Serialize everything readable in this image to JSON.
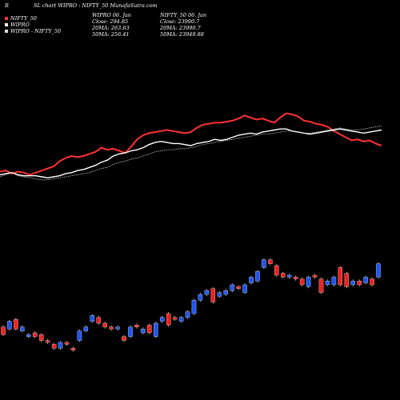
{
  "header": {
    "left_mark": "R",
    "title": "SL chart WIPRO : NIFTY_50 MunafaSutra.com"
  },
  "legend": [
    {
      "label": "NIFTY_50",
      "color": "#ff3333"
    },
    {
      "label": "WIPRO",
      "color": "#ffffff"
    },
    {
      "label": "WIPRO - NIFTY_50",
      "color": "#dddddd"
    }
  ],
  "info_wipro": {
    "line1": "WIPRO 06. Jan",
    "line2": "Close: 294.85",
    "line3": "20MA: 263.63",
    "line4": "50MA: 256.41"
  },
  "info_nifty": {
    "line1": "NIFTY_50 06. Jan",
    "line2": "Close: 23990.7",
    "line3": "20MA: 23990.7",
    "line4": "50MA: 23949.88"
  },
  "chart_data": {
    "type": "line",
    "title": "SL chart WIPRO : NIFTY_50 MunafaSutra.com",
    "series": [
      {
        "name": "NIFTY_50",
        "color": "#ff3333",
        "values": [
          35,
          36,
          33,
          35,
          34,
          32,
          34,
          36,
          38,
          40,
          45,
          48,
          50,
          49,
          50,
          52,
          54,
          58,
          56,
          57,
          55,
          53,
          59,
          66,
          70,
          72,
          73,
          74,
          75,
          74,
          73,
          72,
          73,
          77,
          80,
          81,
          82,
          82,
          83,
          84,
          86,
          89,
          87,
          85,
          86,
          84,
          82,
          87,
          91,
          90,
          88,
          84,
          83,
          81,
          80,
          78,
          74,
          71,
          68,
          65,
          66,
          64,
          65,
          62,
          60
        ]
      },
      {
        "name": "WIPRO",
        "color": "#ffffff",
        "values": [
          32,
          33,
          34,
          32,
          31,
          31,
          31,
          30,
          29,
          30,
          31,
          33,
          34,
          36,
          37,
          39,
          41,
          44,
          46,
          50,
          52,
          53,
          55,
          56,
          58,
          61,
          63,
          64,
          63,
          62,
          62,
          61,
          60,
          62,
          63,
          64,
          66,
          65,
          66,
          68,
          70,
          71,
          72,
          71,
          73,
          74,
          75,
          76,
          76,
          74,
          73,
          72,
          71,
          72,
          73,
          74,
          75,
          76,
          75,
          74,
          73,
          72,
          73,
          74,
          75
        ]
      },
      {
        "name": "WIPRO - NIFTY_50",
        "color": "#dddddd",
        "values": [
          30,
          32,
          34,
          31,
          30,
          29,
          28,
          27,
          27,
          28,
          29,
          30,
          31,
          32,
          33,
          34,
          36,
          38,
          39,
          42,
          44,
          45,
          47,
          48,
          50,
          52,
          54,
          55,
          56,
          56,
          57,
          57,
          58,
          59,
          61,
          62,
          63,
          64,
          65,
          66,
          67,
          68,
          69,
          70,
          71,
          71,
          72,
          73,
          74,
          74,
          73,
          72,
          72,
          73,
          74,
          75,
          76,
          77,
          76,
          75,
          75,
          76,
          77,
          78,
          79
        ]
      }
    ],
    "candles": [
      {
        "o": 38,
        "c": 34
      },
      {
        "o": 37,
        "c": 41
      },
      {
        "o": 42,
        "c": 37
      },
      {
        "o": 36,
        "c": 38
      },
      {
        "o": 33,
        "c": 34
      },
      {
        "o": 35,
        "c": 33
      },
      {
        "o": 34,
        "c": 31
      },
      {
        "o": 31,
        "c": 30
      },
      {
        "o": 29,
        "c": 27
      },
      {
        "o": 27,
        "c": 30
      },
      {
        "o": 30,
        "c": 29
      },
      {
        "o": 27,
        "c": 26
      },
      {
        "o": 31,
        "c": 36
      },
      {
        "o": 36,
        "c": 38
      },
      {
        "o": 41,
        "c": 44
      },
      {
        "o": 43,
        "c": 40
      },
      {
        "o": 40,
        "c": 38
      },
      {
        "o": 38,
        "c": 37
      },
      {
        "o": 37,
        "c": 38
      },
      {
        "o": 33,
        "c": 31
      },
      {
        "o": 33,
        "c": 38
      },
      {
        "o": 39,
        "c": 38
      },
      {
        "o": 35,
        "c": 37
      },
      {
        "o": 39,
        "c": 35
      },
      {
        "o": 33,
        "c": 40
      },
      {
        "o": 41,
        "c": 43
      },
      {
        "o": 45,
        "c": 39
      },
      {
        "o": 43,
        "c": 42
      },
      {
        "o": 41,
        "c": 43
      },
      {
        "o": 43,
        "c": 46
      },
      {
        "o": 45,
        "c": 52
      },
      {
        "o": 52,
        "c": 55
      },
      {
        "o": 55,
        "c": 57
      },
      {
        "o": 58,
        "c": 51
      },
      {
        "o": 54,
        "c": 56
      },
      {
        "o": 55,
        "c": 57
      },
      {
        "o": 57,
        "c": 60
      },
      {
        "o": 59,
        "c": 58
      },
      {
        "o": 56,
        "c": 60
      },
      {
        "o": 61,
        "c": 64
      },
      {
        "o": 62,
        "c": 67
      },
      {
        "o": 69,
        "c": 73
      },
      {
        "o": 73,
        "c": 71
      },
      {
        "o": 70,
        "c": 65
      },
      {
        "o": 66,
        "c": 64
      },
      {
        "o": 64,
        "c": 65
      },
      {
        "o": 64,
        "c": 63
      },
      {
        "o": 63,
        "c": 60
      },
      {
        "o": 59,
        "c": 64
      },
      {
        "o": 65,
        "c": 64
      },
      {
        "o": 63,
        "c": 56
      },
      {
        "o": 60,
        "c": 62
      },
      {
        "o": 60,
        "c": 64
      },
      {
        "o": 69,
        "c": 60
      },
      {
        "o": 66,
        "c": 59
      },
      {
        "o": 60,
        "c": 62
      },
      {
        "o": 62,
        "c": 60
      },
      {
        "o": 61,
        "c": 64
      },
      {
        "o": 63,
        "c": 60
      },
      {
        "o": 64,
        "c": 71
      }
    ]
  }
}
